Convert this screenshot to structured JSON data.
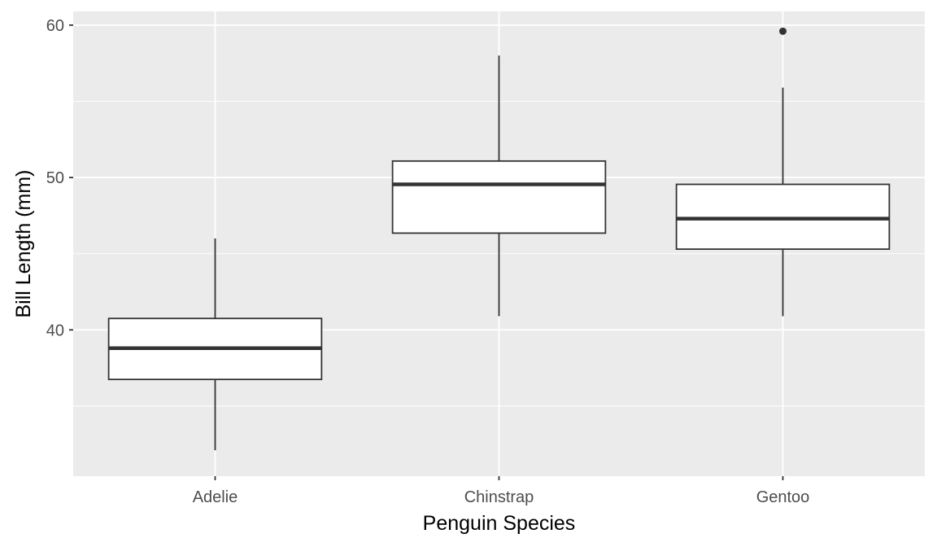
{
  "chart_data": {
    "type": "boxplot",
    "title": "",
    "xlabel": "Penguin Species",
    "ylabel": "Bill Length (mm)",
    "categories": [
      "Adelie",
      "Chinstrap",
      "Gentoo"
    ],
    "ylim": [
      30.4,
      60.9
    ],
    "yticks": [
      40,
      50,
      60
    ],
    "ytick_labels": [
      "40",
      "50",
      "60"
    ],
    "grid": true,
    "legend": "none",
    "boxes": [
      {
        "category": "Adelie",
        "whisker_low": 32.1,
        "q1": 36.75,
        "median": 38.8,
        "q3": 40.75,
        "whisker_high": 46.0,
        "outliers": []
      },
      {
        "category": "Chinstrap",
        "whisker_low": 40.9,
        "q1": 46.35,
        "median": 49.55,
        "q3": 51.08,
        "whisker_high": 58.0,
        "outliers": []
      },
      {
        "category": "Gentoo",
        "whisker_low": 40.9,
        "q1": 45.3,
        "median": 47.3,
        "q3": 49.55,
        "whisker_high": 55.9,
        "outliers": [
          59.6
        ]
      }
    ],
    "colors": {
      "panel": "#ebebeb",
      "grid": "#ffffff",
      "box_fill": "#ffffff",
      "box_line": "#333333",
      "tick_text": "#4d4d4d",
      "title_text": "#000000"
    }
  }
}
